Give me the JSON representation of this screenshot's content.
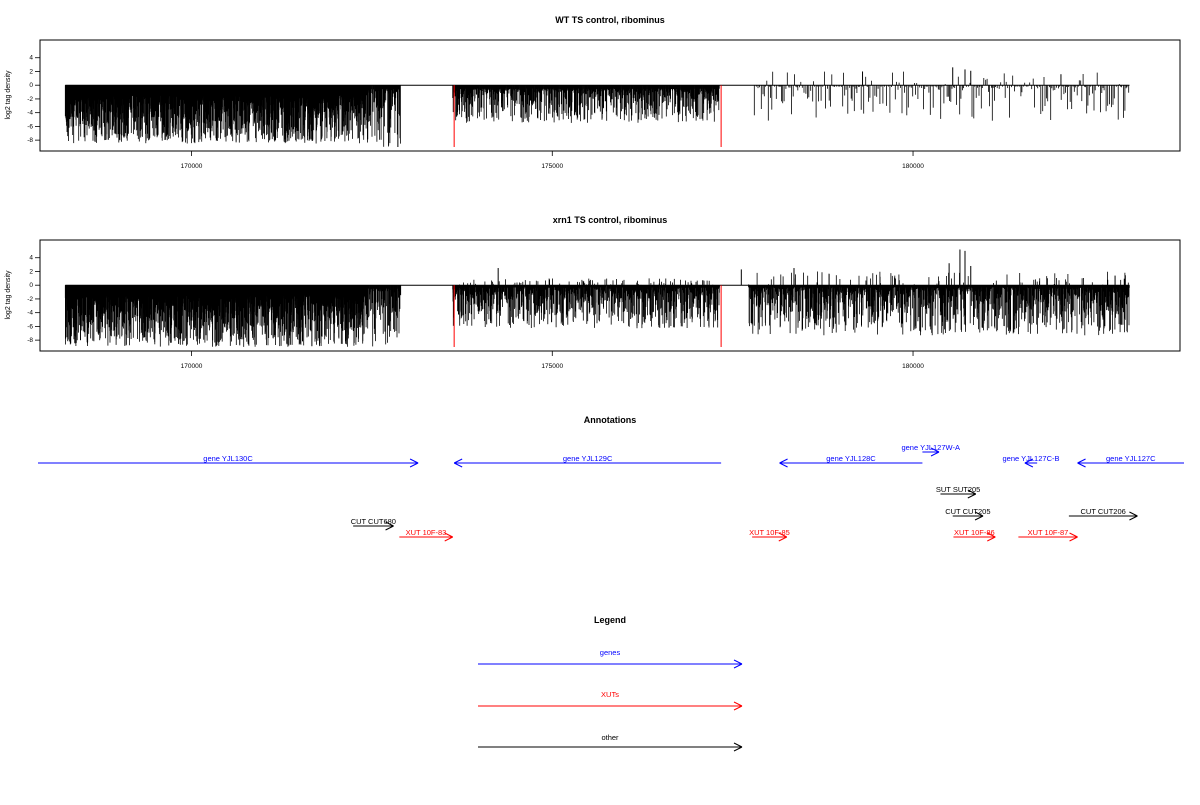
{
  "panels": [
    {
      "title": "WT TS control, ribominus",
      "ylabel": "log2 tag density",
      "yticks": [
        4,
        2,
        0,
        -2,
        -4,
        -6,
        -8
      ],
      "ylim": [
        -9,
        6
      ],
      "xlim": [
        167900,
        183700
      ],
      "xticks": [
        170000,
        175000,
        180000
      ],
      "xtick_labels": [
        "170000",
        "175000",
        "180000"
      ],
      "segments": [
        {
          "from": 168250,
          "to": 172420,
          "density": "dense",
          "min": -8.5,
          "max": 0
        },
        {
          "from": 172420,
          "to": 172900,
          "density": "med",
          "min": -9,
          "max": 0
        },
        {
          "from": 173620,
          "to": 177320,
          "density": "med",
          "min": -5.5,
          "max": 0
        },
        {
          "from": 177800,
          "to": 183000,
          "density": "sparse",
          "min": -5,
          "max": 2
        }
      ],
      "spikes": [
        {
          "x": 172860,
          "y": -9
        },
        {
          "x": 179300,
          "y": 2
        },
        {
          "x": 180550,
          "y": 2.6
        },
        {
          "x": 180720,
          "y": 2.3
        },
        {
          "x": 180800,
          "y": 2.1
        },
        {
          "x": 182050,
          "y": 1.6
        }
      ],
      "red_lines": [
        173640,
        177340
      ],
      "red_ymin": -9
    },
    {
      "title": "xrn1 TS control, ribominus",
      "ylabel": "log2 tag density",
      "yticks": [
        4,
        2,
        0,
        -2,
        -4,
        -6,
        -8
      ],
      "ylim": [
        -9,
        6
      ],
      "xlim": [
        167900,
        183700
      ],
      "xticks": [
        170000,
        175000,
        180000
      ],
      "xtick_labels": [
        "170000",
        "175000",
        "180000"
      ],
      "segments": [
        {
          "from": 168250,
          "to": 172420,
          "density": "dense",
          "min": -9,
          "max": 0
        },
        {
          "from": 172420,
          "to": 172900,
          "density": "med",
          "min": -9,
          "max": 0
        },
        {
          "from": 173620,
          "to": 177320,
          "density": "dense_light",
          "min": -6,
          "max": 1
        },
        {
          "from": 177720,
          "to": 183000,
          "density": "dense_light",
          "min": -7,
          "max": 2
        }
      ],
      "spikes": [
        {
          "x": 174250,
          "y": 2.5
        },
        {
          "x": 177620,
          "y": 2.3
        },
        {
          "x": 178350,
          "y": 2.5
        },
        {
          "x": 180500,
          "y": 3.2
        },
        {
          "x": 180650,
          "y": 5.2
        },
        {
          "x": 180720,
          "y": 5
        },
        {
          "x": 180800,
          "y": 2.8
        },
        {
          "x": 182800,
          "y": 1.4
        }
      ],
      "red_lines": [
        173640,
        177340
      ],
      "red_ymin": -9
    }
  ],
  "annotations": {
    "title": "Annotations",
    "items": [
      {
        "label": "gene YJL130C",
        "from": 167750,
        "to": 173140,
        "dir": "right",
        "color": "#0000ff",
        "row": 0
      },
      {
        "label": "gene YJL129C",
        "from": 173640,
        "to": 177340,
        "dir": "left",
        "color": "#0000ff",
        "row": 0
      },
      {
        "label": "gene YJL128C",
        "from": 178150,
        "to": 180130,
        "dir": "left",
        "color": "#0000ff",
        "row": 0
      },
      {
        "label": "gene YJL127W-A",
        "from": 180130,
        "to": 180360,
        "dir": "right",
        "color": "#0000ff",
        "row": -1
      },
      {
        "label": "gene YJL127C-B",
        "from": 181550,
        "to": 181720,
        "dir": "left",
        "color": "#0000ff",
        "row": 0
      },
      {
        "label": "gene YJL127C",
        "from": 182280,
        "to": 184000,
        "dir": "left",
        "color": "#0000ff",
        "row": 0
      },
      {
        "label": "SUT SUT205",
        "from": 180380,
        "to": 180870,
        "dir": "right",
        "color": "#000000",
        "row": 1
      },
      {
        "label": "CUT CUT205",
        "from": 180550,
        "to": 180970,
        "dir": "right",
        "color": "#000000",
        "row": 2
      },
      {
        "label": "CUT CUT206",
        "from": 182160,
        "to": 183110,
        "dir": "right",
        "color": "#000000",
        "row": 2
      },
      {
        "label": "CUT CUT680",
        "from": 172240,
        "to": 172800,
        "dir": "right",
        "color": "#000000",
        "row": 3
      },
      {
        "label": "XUT 10F-83",
        "from": 172880,
        "to": 173620,
        "dir": "right",
        "color": "#ff0000",
        "row": 4
      },
      {
        "label": "XUT 10F-85",
        "from": 177770,
        "to": 178250,
        "dir": "right",
        "color": "#ff0000",
        "row": 4
      },
      {
        "label": "XUT 10F-86",
        "from": 180560,
        "to": 181140,
        "dir": "right",
        "color": "#ff0000",
        "row": 4
      },
      {
        "label": "XUT 10F-87",
        "from": 181460,
        "to": 182280,
        "dir": "right",
        "color": "#ff0000",
        "row": 4
      }
    ]
  },
  "legend": {
    "title": "Legend",
    "entries": [
      {
        "label": "genes",
        "color": "#0000ff"
      },
      {
        "label": "XUTs",
        "color": "#ff0000"
      },
      {
        "label": "other",
        "color": "#000000"
      }
    ]
  }
}
